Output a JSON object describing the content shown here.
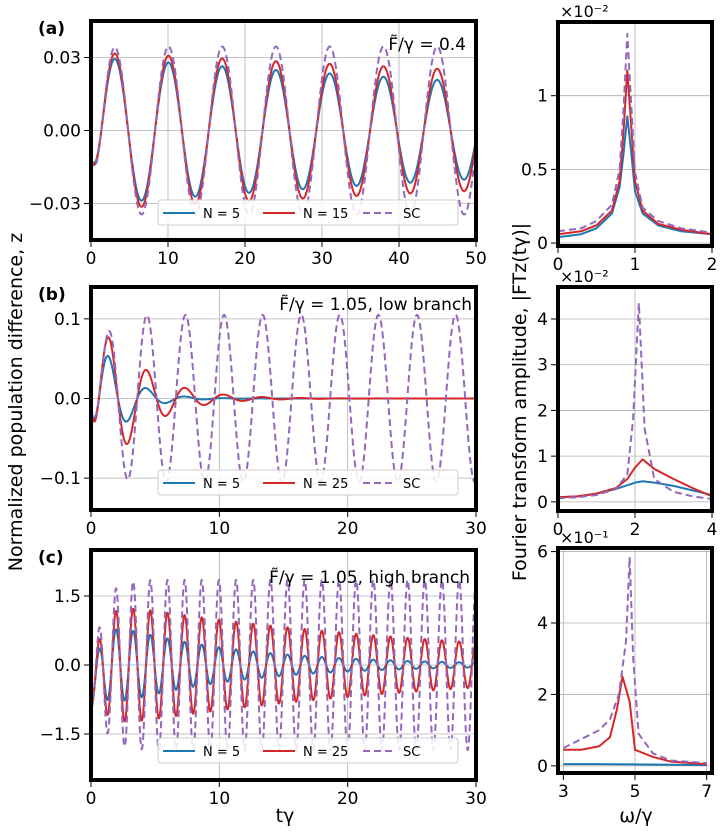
{
  "figure": {
    "ylabel_left": "Normalized population difference, z",
    "ylabel_right": "Fourier transform amplitude, |FTz(tγ)|",
    "xlabel_left": "tγ",
    "xlabel_right": "ω/γ"
  },
  "colors": {
    "n_small": "#1f77b4",
    "n_large": "#d62728",
    "sc": "#9467bd"
  },
  "chart_data": [
    {
      "id": "a-time",
      "type": "line",
      "panel_label": "(a)",
      "annotation": "F̃/γ = 0.4",
      "xlim": [
        0,
        50
      ],
      "ylim": [
        -0.045,
        0.045
      ],
      "xticks": [
        0,
        10,
        20,
        30,
        40,
        50
      ],
      "xtick_labels": [
        "0",
        "10",
        "20",
        "30",
        "40",
        "50"
      ],
      "yticks": [
        -0.03,
        0,
        0.03
      ],
      "ytick_labels": [
        "−0.03",
        "0.00",
        "0.03"
      ],
      "model": {
        "omega": 0.9,
        "phase": -1.2,
        "start": -0.012,
        "rise": 1.5
      },
      "series": [
        {
          "name": "N = 5",
          "amp": 0.0305,
          "decay": 0.0085,
          "style": "solid",
          "color_key": "n_small"
        },
        {
          "name": "N = 15",
          "amp": 0.0325,
          "decay": 0.0055,
          "style": "solid",
          "color_key": "n_large"
        },
        {
          "name": "SC",
          "amp": 0.0345,
          "decay": 0.0,
          "style": "dashed",
          "color_key": "sc"
        }
      ]
    },
    {
      "id": "b-time",
      "type": "line",
      "panel_label": "(b)",
      "annotation": "F̃/γ = 1.05, low branch",
      "xlim": [
        0,
        30
      ],
      "ylim": [
        -0.14,
        0.14
      ],
      "xticks": [
        0,
        10,
        20,
        30
      ],
      "xtick_labels": [
        "0",
        "10",
        "20",
        "30"
      ],
      "yticks": [
        -0.1,
        0,
        0.1
      ],
      "ytick_labels": [
        "−0.1",
        "0.0",
        "0.1"
      ],
      "model": {
        "omega": 2.09,
        "phase": -1.25,
        "start": -0.01,
        "rise": 1.2
      },
      "series": [
        {
          "name": "N = 5",
          "amp": 0.14,
          "decay": 0.55,
          "style": "solid",
          "color_key": "n_small"
        },
        {
          "name": "N = 25",
          "amp": 0.15,
          "decay": 0.33,
          "style": "solid",
          "color_key": "n_large"
        },
        {
          "name": "SC",
          "amp": 0.105,
          "decay": 0.0,
          "style": "dashed",
          "color_key": "sc"
        }
      ]
    },
    {
      "id": "c-time",
      "type": "line",
      "panel_label": "(c)",
      "annotation": "F̃/γ = 1.05, high branch",
      "xlim": [
        0,
        30
      ],
      "ylim": [
        -2.5,
        2.5
      ],
      "xticks": [
        0,
        10,
        20,
        30
      ],
      "xtick_labels": [
        "0",
        "10",
        "20",
        "30"
      ],
      "yticks": [
        -1.5,
        0,
        1.5
      ],
      "ytick_labels": [
        "−1.5",
        "0.0",
        "1.5"
      ],
      "model": {
        "omega": 4.7,
        "phase": -1.3,
        "start": -0.95,
        "rise": 1.2
      },
      "series": [
        {
          "name": "N = 5",
          "amp": 1.05,
          "decay": 0.1,
          "style": "solid",
          "color_key": "n_small"
        },
        {
          "name": "N = 25",
          "amp": 1.4,
          "decay": 0.035,
          "style": "solid",
          "color_key": "n_large"
        },
        {
          "name": "SC",
          "amp": 1.85,
          "decay": 0.0,
          "style": "dashed",
          "color_key": "sc"
        }
      ]
    },
    {
      "id": "a-fft",
      "type": "line",
      "multiplier_label": "×10⁻²",
      "xlim": [
        0,
        2
      ],
      "ylim": [
        -0.02,
        1.5
      ],
      "xticks": [
        0,
        1,
        2
      ],
      "xtick_labels": [
        "0",
        "1",
        "2"
      ],
      "yticks": [
        0,
        0.5,
        1
      ],
      "ytick_labels": [
        "0",
        "0.5",
        "1"
      ],
      "series": [
        {
          "name": "N = 5",
          "color_key": "n_small",
          "style": "solid",
          "x": [
            0,
            0.3,
            0.5,
            0.7,
            0.8,
            0.85,
            0.9,
            0.95,
            1.0,
            1.1,
            1.3,
            1.6,
            2.0
          ],
          "y": [
            0.04,
            0.06,
            0.1,
            0.2,
            0.38,
            0.6,
            0.86,
            0.62,
            0.35,
            0.2,
            0.12,
            0.08,
            0.06
          ]
        },
        {
          "name": "N = 15",
          "color_key": "n_large",
          "style": "solid",
          "x": [
            0,
            0.3,
            0.5,
            0.7,
            0.8,
            0.85,
            0.9,
            0.95,
            1.0,
            1.1,
            1.3,
            1.6,
            2.0
          ],
          "y": [
            0.06,
            0.08,
            0.12,
            0.22,
            0.42,
            0.75,
            1.17,
            0.8,
            0.42,
            0.22,
            0.13,
            0.09,
            0.06
          ]
        },
        {
          "name": "SC",
          "color_key": "sc",
          "style": "dashed",
          "x": [
            0,
            0.3,
            0.5,
            0.7,
            0.8,
            0.85,
            0.9,
            0.95,
            1.0,
            1.1,
            1.3,
            1.6,
            2.0
          ],
          "y": [
            0.08,
            0.1,
            0.15,
            0.26,
            0.5,
            0.9,
            1.42,
            0.95,
            0.48,
            0.24,
            0.15,
            0.1,
            0.07
          ]
        }
      ]
    },
    {
      "id": "b-fft",
      "type": "line",
      "multiplier_label": "×10⁻²",
      "xlim": [
        0,
        4
      ],
      "ylim": [
        -0.2,
        4.7
      ],
      "xticks": [
        0,
        2,
        4
      ],
      "xtick_labels": [
        "0",
        "2",
        "4"
      ],
      "yticks": [
        0,
        1,
        2,
        3,
        4
      ],
      "ytick_labels": [
        "0",
        "1",
        "2",
        "3",
        "4"
      ],
      "series": [
        {
          "name": "N = 5",
          "color_key": "n_small",
          "style": "solid",
          "x": [
            0,
            0.5,
            1.0,
            1.5,
            2.0,
            2.2,
            2.5,
            3.0,
            3.5,
            4.0
          ],
          "y": [
            0.1,
            0.12,
            0.18,
            0.28,
            0.42,
            0.45,
            0.42,
            0.35,
            0.25,
            0.15
          ]
        },
        {
          "name": "N = 25",
          "color_key": "n_large",
          "style": "solid",
          "x": [
            0,
            0.5,
            1.0,
            1.5,
            1.8,
            2.0,
            2.2,
            2.5,
            3.0,
            3.5,
            4.0
          ],
          "y": [
            0.1,
            0.12,
            0.18,
            0.3,
            0.5,
            0.75,
            0.93,
            0.72,
            0.5,
            0.3,
            0.12
          ]
        },
        {
          "name": "SC",
          "color_key": "sc",
          "style": "dashed",
          "x": [
            0,
            0.5,
            1.0,
            1.5,
            1.8,
            1.95,
            2.1,
            2.25,
            2.5,
            3.0,
            3.5,
            4.0
          ],
          "y": [
            0.08,
            0.1,
            0.15,
            0.28,
            0.6,
            1.8,
            4.35,
            1.6,
            0.5,
            0.22,
            0.12,
            0.06
          ]
        }
      ]
    },
    {
      "id": "c-fft",
      "type": "line",
      "multiplier_label": "×10⁻¹",
      "xlim": [
        2.85,
        7.15
      ],
      "ylim": [
        -0.2,
        6.1
      ],
      "xticks": [
        3,
        5,
        7
      ],
      "xtick_labels": [
        "3",
        "5",
        "7"
      ],
      "yticks": [
        0,
        2,
        4,
        6
      ],
      "ytick_labels": [
        "0",
        "2",
        "4",
        "6"
      ],
      "series": [
        {
          "name": "N = 5",
          "color_key": "n_small",
          "style": "solid",
          "x": [
            3.0,
            4.0,
            5.0,
            6.0,
            7.0
          ],
          "y": [
            0.05,
            0.05,
            0.04,
            0.03,
            0.02
          ]
        },
        {
          "name": "N = 25",
          "color_key": "n_large",
          "style": "solid",
          "x": [
            3.0,
            3.5,
            4.0,
            4.3,
            4.5,
            4.65,
            4.85,
            5.0,
            5.5,
            6.0,
            7.0
          ],
          "y": [
            0.45,
            0.45,
            0.55,
            0.8,
            1.6,
            2.5,
            1.8,
            0.45,
            0.25,
            0.12,
            0.05
          ]
        },
        {
          "name": "SC",
          "color_key": "sc",
          "style": "dashed",
          "x": [
            3.0,
            3.5,
            4.0,
            4.3,
            4.55,
            4.75,
            4.85,
            4.95,
            5.1,
            5.5,
            6.0,
            7.0
          ],
          "y": [
            0.5,
            0.75,
            1.0,
            1.3,
            2.0,
            3.5,
            5.85,
            3.0,
            0.9,
            0.35,
            0.15,
            0.08
          ]
        }
      ]
    }
  ]
}
